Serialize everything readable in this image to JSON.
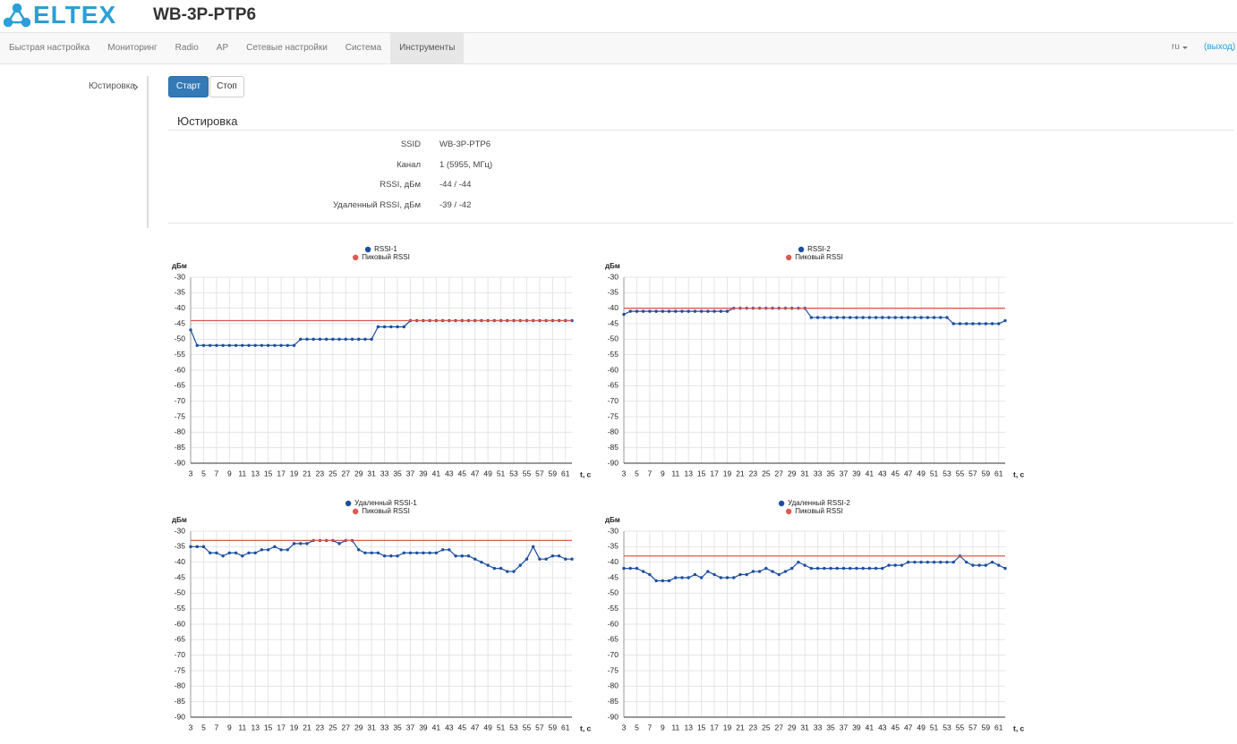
{
  "header": {
    "logo": "ELTEX",
    "title": "WB-3P-PTP6"
  },
  "nav": {
    "items": [
      "Быстрая настройка",
      "Мониторинг",
      "Radio",
      "AP",
      "Сетевые настройки",
      "Система",
      "Инструменты"
    ],
    "active": 6,
    "lang": "ru",
    "logout": "(выход)"
  },
  "sidebar": {
    "items": [
      "Юстировка"
    ]
  },
  "buttons": [
    "Старт",
    "Стоп"
  ],
  "section": {
    "title": "Юстировка",
    "rows": [
      [
        "SSID",
        "WB-3P-PTP6"
      ],
      [
        "Канал",
        "1 (5955, МГц)"
      ],
      [
        "RSSI, дБм",
        "-44 / -44"
      ],
      [
        "Удаленный RSSI, дБм",
        "-39 / -42"
      ]
    ]
  },
  "chart_data": [
    {
      "type": "line",
      "x_label": "t, c",
      "y_label": "дБм",
      "grid": true,
      "xlim": [
        3,
        62
      ],
      "ylim": [
        -90,
        -30
      ],
      "xticks": [
        3,
        5,
        7,
        9,
        11,
        13,
        15,
        17,
        19,
        21,
        23,
        25,
        27,
        29,
        31,
        33,
        35,
        37,
        39,
        41,
        43,
        45,
        47,
        49,
        51,
        53,
        55,
        57,
        59,
        61
      ],
      "yticks": [
        -30,
        -35,
        -40,
        -45,
        -50,
        -55,
        -60,
        -65,
        -70,
        -75,
        -80,
        -85,
        -90
      ],
      "x": [
        3,
        4,
        5,
        6,
        7,
        8,
        9,
        10,
        11,
        12,
        13,
        14,
        15,
        16,
        17,
        18,
        19,
        20,
        21,
        22,
        23,
        24,
        25,
        26,
        27,
        28,
        29,
        30,
        31,
        32,
        33,
        34,
        35,
        36,
        37,
        38,
        39,
        40,
        41,
        42,
        43,
        44,
        45,
        46,
        47,
        48,
        49,
        50,
        51,
        52,
        53,
        54,
        55,
        56,
        57,
        58,
        59,
        60,
        61,
        62
      ],
      "series": [
        {
          "name": "RSSI-1",
          "color": "#1c4fa0",
          "markers": true,
          "values": [
            -47,
            -52,
            -52,
            -52,
            -52,
            -52,
            -52,
            -52,
            -52,
            -52,
            -52,
            -52,
            -52,
            -52,
            -52,
            -52,
            -52,
            -50,
            -50,
            -50,
            -50,
            -50,
            -50,
            -50,
            -50,
            -50,
            -50,
            -50,
            -50,
            -46,
            -46,
            -46,
            -46,
            -46,
            -44,
            -44,
            -44,
            -44,
            -44,
            -44,
            -44,
            -44,
            -44,
            -44,
            -44,
            -44,
            -44,
            -44,
            -44,
            -44,
            -44,
            -44,
            -44,
            -44,
            -44,
            -44,
            -44,
            -44,
            -44,
            -44
          ]
        },
        {
          "name": "Пиковый RSSI",
          "color": "#dc5a50",
          "markers": false,
          "values": [
            -44,
            -44,
            -44,
            -44,
            -44,
            -44,
            -44,
            -44,
            -44,
            -44,
            -44,
            -44,
            -44,
            -44,
            -44,
            -44,
            -44,
            -44,
            -44,
            -44,
            -44,
            -44,
            -44,
            -44,
            -44,
            -44,
            -44,
            -44,
            -44,
            -44,
            -44,
            -44,
            -44,
            -44,
            -44,
            -44,
            -44,
            -44,
            -44,
            -44,
            -44,
            -44,
            -44,
            -44,
            -44,
            -44,
            -44,
            -44,
            -44,
            -44,
            -44,
            -44,
            -44,
            -44,
            -44,
            -44,
            -44,
            -44,
            -44,
            -44
          ]
        }
      ]
    },
    {
      "type": "line",
      "x_label": "t, c",
      "y_label": "дБм",
      "grid": true,
      "xlim": [
        3,
        62
      ],
      "ylim": [
        -90,
        -30
      ],
      "xticks": [
        3,
        5,
        7,
        9,
        11,
        13,
        15,
        17,
        19,
        21,
        23,
        25,
        27,
        29,
        31,
        33,
        35,
        37,
        39,
        41,
        43,
        45,
        47,
        49,
        51,
        53,
        55,
        57,
        59,
        61
      ],
      "yticks": [
        -30,
        -35,
        -40,
        -45,
        -50,
        -55,
        -60,
        -65,
        -70,
        -75,
        -80,
        -85,
        -90
      ],
      "x": [
        3,
        4,
        5,
        6,
        7,
        8,
        9,
        10,
        11,
        12,
        13,
        14,
        15,
        16,
        17,
        18,
        19,
        20,
        21,
        22,
        23,
        24,
        25,
        26,
        27,
        28,
        29,
        30,
        31,
        32,
        33,
        34,
        35,
        36,
        37,
        38,
        39,
        40,
        41,
        42,
        43,
        44,
        45,
        46,
        47,
        48,
        49,
        50,
        51,
        52,
        53,
        54,
        55,
        56,
        57,
        58,
        59,
        60,
        61,
        62
      ],
      "series": [
        {
          "name": "RSSI-2",
          "color": "#1c4fa0",
          "markers": true,
          "values": [
            -42,
            -41,
            -41,
            -41,
            -41,
            -41,
            -41,
            -41,
            -41,
            -41,
            -41,
            -41,
            -41,
            -41,
            -41,
            -41,
            -41,
            -40,
            -40,
            -40,
            -40,
            -40,
            -40,
            -40,
            -40,
            -40,
            -40,
            -40,
            -40,
            -43,
            -43,
            -43,
            -43,
            -43,
            -43,
            -43,
            -43,
            -43,
            -43,
            -43,
            -43,
            -43,
            -43,
            -43,
            -43,
            -43,
            -43,
            -43,
            -43,
            -43,
            -43,
            -45,
            -45,
            -45,
            -45,
            -45,
            -45,
            -45,
            -45,
            -44
          ]
        },
        {
          "name": "Пиковый RSSI",
          "color": "#dc5a50",
          "markers": false,
          "values": [
            -40,
            -40,
            -40,
            -40,
            -40,
            -40,
            -40,
            -40,
            -40,
            -40,
            -40,
            -40,
            -40,
            -40,
            -40,
            -40,
            -40,
            -40,
            -40,
            -40,
            -40,
            -40,
            -40,
            -40,
            -40,
            -40,
            -40,
            -40,
            -40,
            -40,
            -40,
            -40,
            -40,
            -40,
            -40,
            -40,
            -40,
            -40,
            -40,
            -40,
            -40,
            -40,
            -40,
            -40,
            -40,
            -40,
            -40,
            -40,
            -40,
            -40,
            -40,
            -40,
            -40,
            -40,
            -40,
            -40,
            -40,
            -40,
            -40,
            -40
          ]
        }
      ]
    },
    {
      "type": "line",
      "x_label": "t, c",
      "y_label": "дБм",
      "grid": true,
      "xlim": [
        3,
        62
      ],
      "ylim": [
        -90,
        -30
      ],
      "xticks": [
        3,
        5,
        7,
        9,
        11,
        13,
        15,
        17,
        19,
        21,
        23,
        25,
        27,
        29,
        31,
        33,
        35,
        37,
        39,
        41,
        43,
        45,
        47,
        49,
        51,
        53,
        55,
        57,
        59,
        61
      ],
      "yticks": [
        -30,
        -35,
        -40,
        -45,
        -50,
        -55,
        -60,
        -65,
        -70,
        -75,
        -80,
        -85,
        -90
      ],
      "x": [
        3,
        4,
        5,
        6,
        7,
        8,
        9,
        10,
        11,
        12,
        13,
        14,
        15,
        16,
        17,
        18,
        19,
        20,
        21,
        22,
        23,
        24,
        25,
        26,
        27,
        28,
        29,
        30,
        31,
        32,
        33,
        34,
        35,
        36,
        37,
        38,
        39,
        40,
        41,
        42,
        43,
        44,
        45,
        46,
        47,
        48,
        49,
        50,
        51,
        52,
        53,
        54,
        55,
        56,
        57,
        58,
        59,
        60,
        61,
        62
      ],
      "series": [
        {
          "name": "Удаленный RSSI-1",
          "color": "#1c4fa0",
          "markers": true,
          "values": [
            -35,
            -35,
            -35,
            -37,
            -37,
            -38,
            -37,
            -37,
            -38,
            -37,
            -37,
            -36,
            -36,
            -35,
            -36,
            -36,
            -34,
            -34,
            -34,
            -33,
            -33,
            -33,
            -33,
            -34,
            -33,
            -33,
            -36,
            -37,
            -37,
            -37,
            -38,
            -38,
            -38,
            -37,
            -37,
            -37,
            -37,
            -37,
            -37,
            -36,
            -36,
            -38,
            -38,
            -38,
            -39,
            -40,
            -41,
            -42,
            -42,
            -43,
            -43,
            -41,
            -39,
            -35,
            -39,
            -39,
            -38,
            -38,
            -39,
            -39
          ]
        },
        {
          "name": "Пиковый RSSI",
          "color": "#dc5a50",
          "markers": false,
          "values": [
            -33,
            -33,
            -33,
            -33,
            -33,
            -33,
            -33,
            -33,
            -33,
            -33,
            -33,
            -33,
            -33,
            -33,
            -33,
            -33,
            -33,
            -33,
            -33,
            -33,
            -33,
            -33,
            -33,
            -33,
            -33,
            -33,
            -33,
            -33,
            -33,
            -33,
            -33,
            -33,
            -33,
            -33,
            -33,
            -33,
            -33,
            -33,
            -33,
            -33,
            -33,
            -33,
            -33,
            -33,
            -33,
            -33,
            -33,
            -33,
            -33,
            -33,
            -33,
            -33,
            -33,
            -33,
            -33,
            -33,
            -33,
            -33,
            -33,
            -33
          ]
        }
      ]
    },
    {
      "type": "line",
      "x_label": "t, c",
      "y_label": "дБм",
      "grid": true,
      "xlim": [
        3,
        62
      ],
      "ylim": [
        -90,
        -30
      ],
      "xticks": [
        3,
        5,
        7,
        9,
        11,
        13,
        15,
        17,
        19,
        21,
        23,
        25,
        27,
        29,
        31,
        33,
        35,
        37,
        39,
        41,
        43,
        45,
        47,
        49,
        51,
        53,
        55,
        57,
        59,
        61
      ],
      "yticks": [
        -30,
        -35,
        -40,
        -45,
        -50,
        -55,
        -60,
        -65,
        -70,
        -75,
        -80,
        -85,
        -90
      ],
      "x": [
        3,
        4,
        5,
        6,
        7,
        8,
        9,
        10,
        11,
        12,
        13,
        14,
        15,
        16,
        17,
        18,
        19,
        20,
        21,
        22,
        23,
        24,
        25,
        26,
        27,
        28,
        29,
        30,
        31,
        32,
        33,
        34,
        35,
        36,
        37,
        38,
        39,
        40,
        41,
        42,
        43,
        44,
        45,
        46,
        47,
        48,
        49,
        50,
        51,
        52,
        53,
        54,
        55,
        56,
        57,
        58,
        59,
        60,
        61,
        62
      ],
      "series": [
        {
          "name": "Удаленный RSSI-2",
          "color": "#1c4fa0",
          "markers": true,
          "values": [
            -42,
            -42,
            -42,
            -43,
            -44,
            -46,
            -46,
            -46,
            -45,
            -45,
            -45,
            -44,
            -45,
            -43,
            -44,
            -45,
            -45,
            -45,
            -44,
            -44,
            -43,
            -43,
            -42,
            -43,
            -44,
            -43,
            -42,
            -40,
            -41,
            -42,
            -42,
            -42,
            -42,
            -42,
            -42,
            -42,
            -42,
            -42,
            -42,
            -42,
            -42,
            -41,
            -41,
            -41,
            -40,
            -40,
            -40,
            -40,
            -40,
            -40,
            -40,
            -40,
            -38,
            -40,
            -41,
            -41,
            -41,
            -40,
            -41,
            -42
          ]
        },
        {
          "name": "Пиковый RSSI",
          "color": "#dc5a50",
          "markers": false,
          "values": [
            -38,
            -38,
            -38,
            -38,
            -38,
            -38,
            -38,
            -38,
            -38,
            -38,
            -38,
            -38,
            -38,
            -38,
            -38,
            -38,
            -38,
            -38,
            -38,
            -38,
            -38,
            -38,
            -38,
            -38,
            -38,
            -38,
            -38,
            -38,
            -38,
            -38,
            -38,
            -38,
            -38,
            -38,
            -38,
            -38,
            -38,
            -38,
            -38,
            -38,
            -38,
            -38,
            -38,
            -38,
            -38,
            -38,
            -38,
            -38,
            -38,
            -38,
            -38,
            -38,
            -38,
            -38,
            -38,
            -38,
            -38,
            -38,
            -38,
            -38
          ]
        }
      ]
    }
  ]
}
